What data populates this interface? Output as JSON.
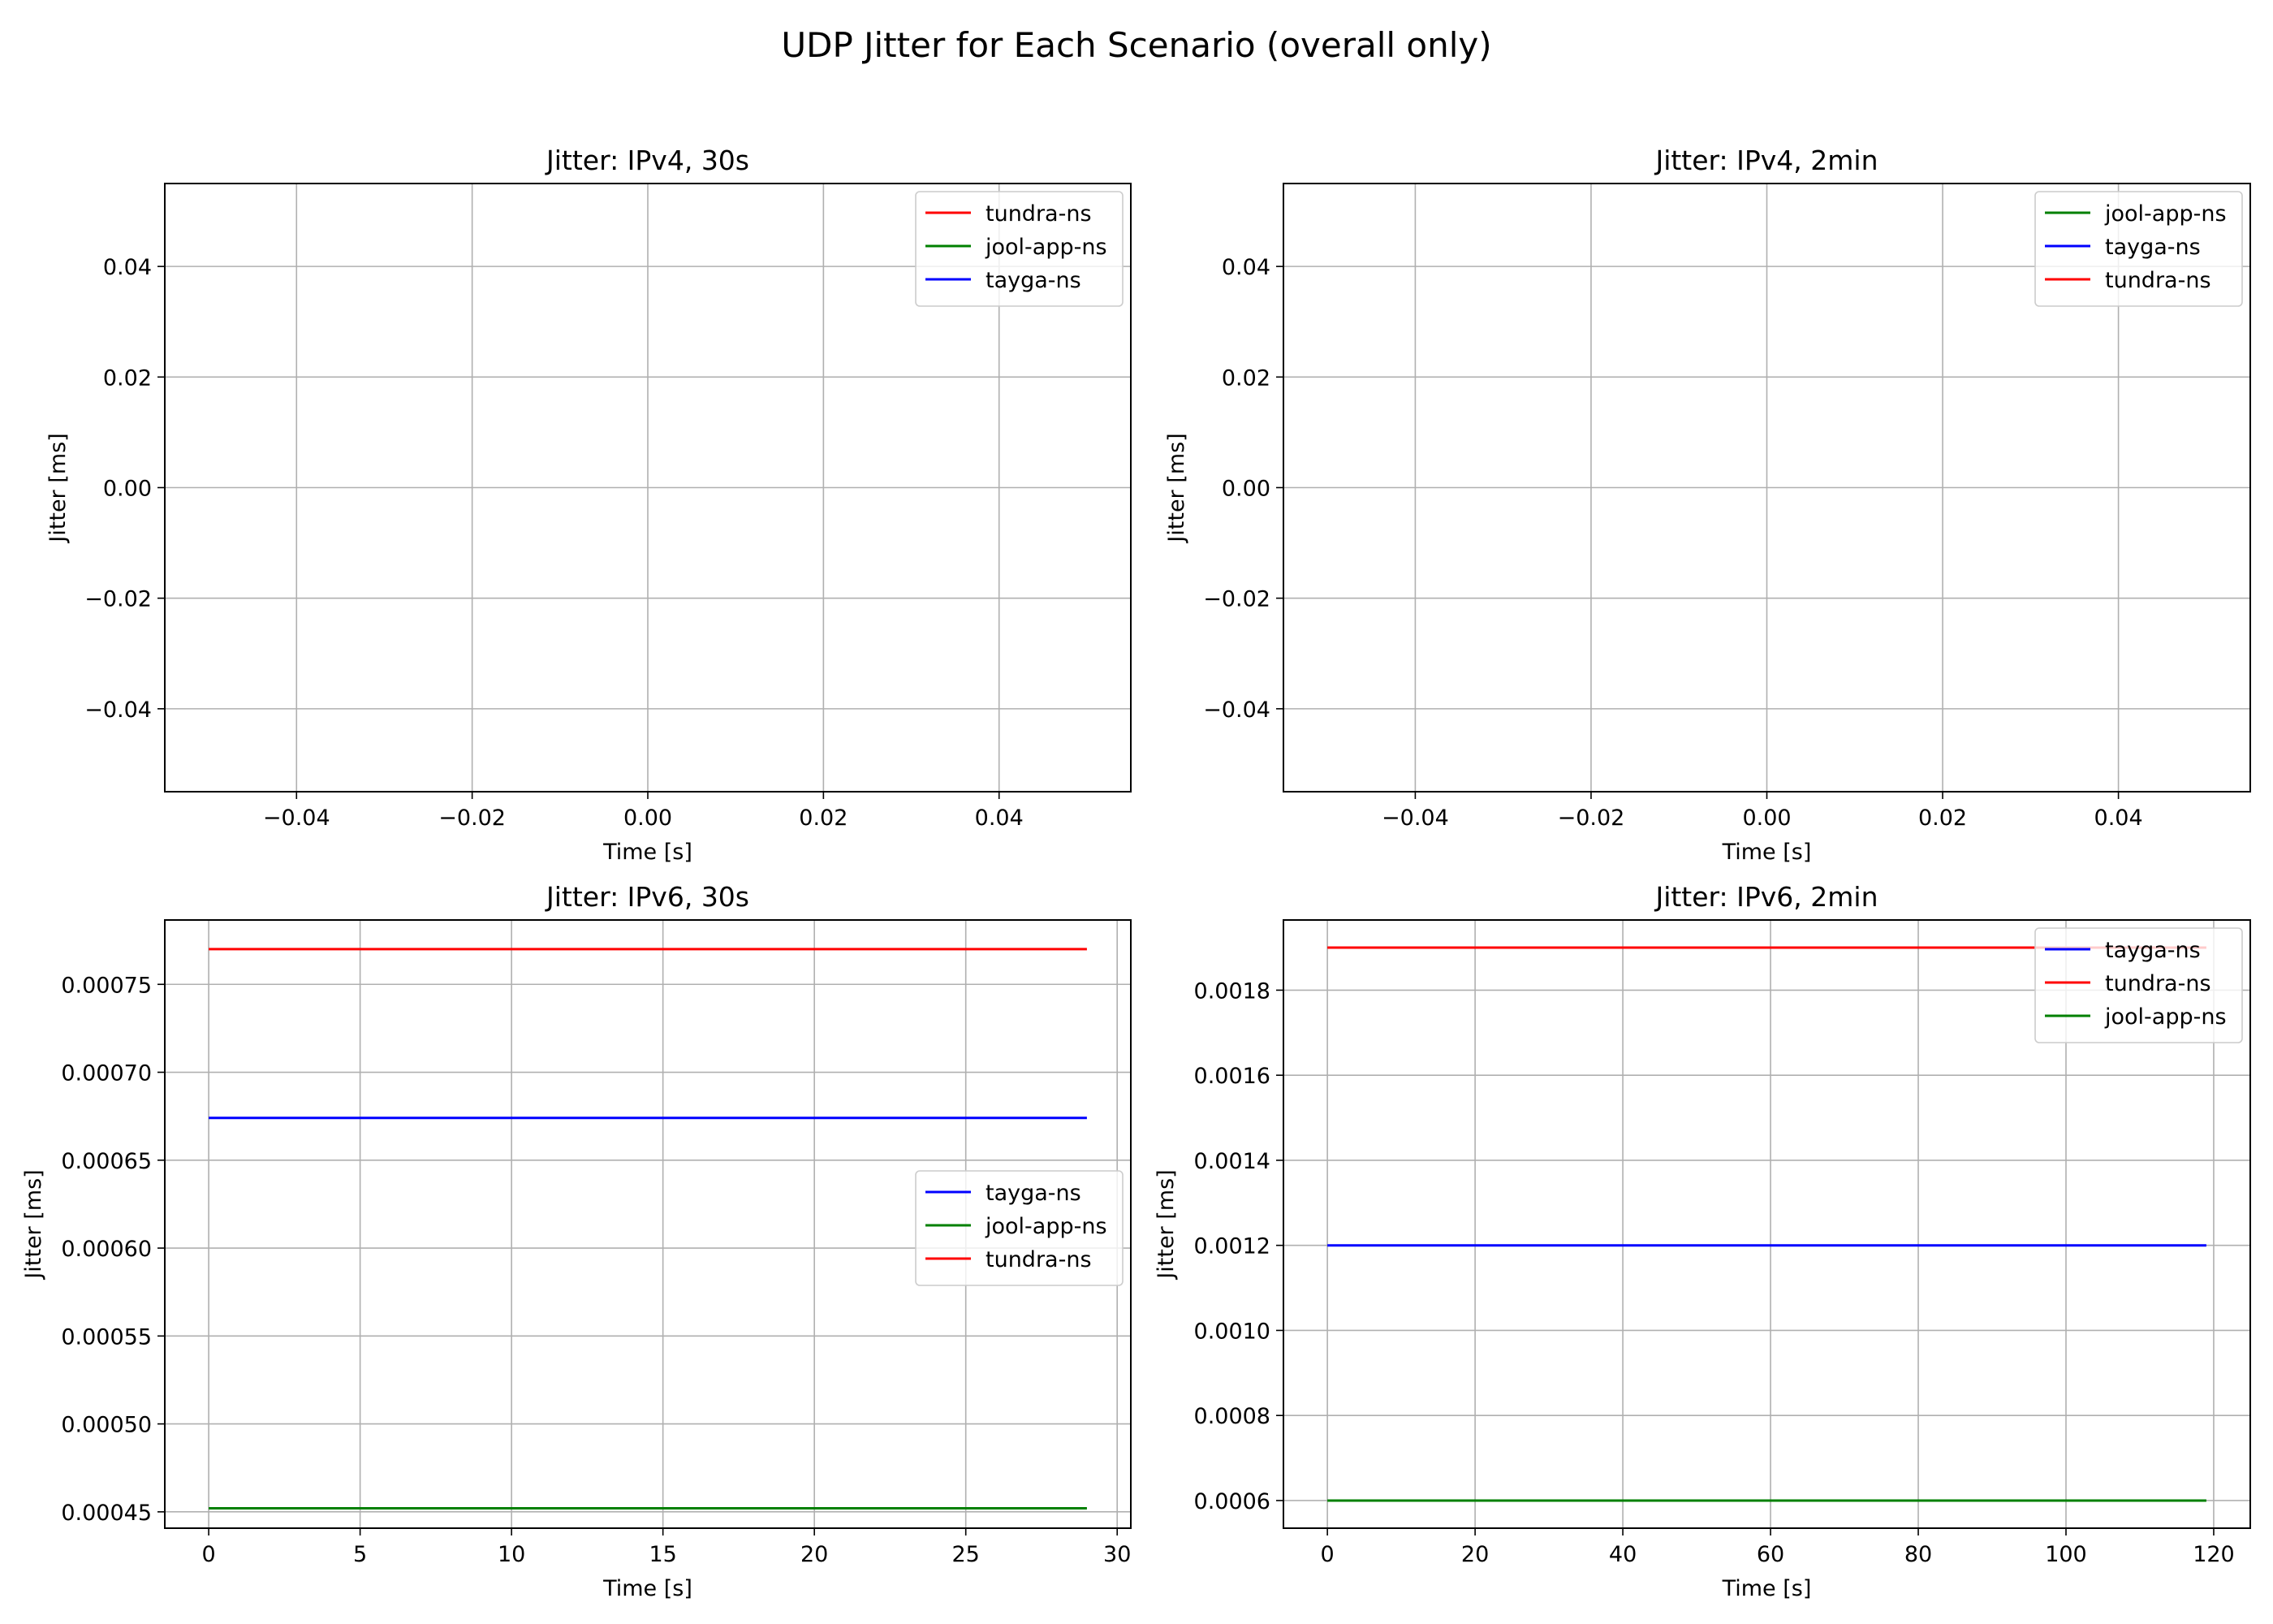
{
  "figure": {
    "title": "UDP Jitter for Each Scenario (overall only)"
  },
  "chart_data": [
    {
      "type": "line",
      "title": "Jitter: IPv4, 30s",
      "xlabel": "Time [s]",
      "ylabel": "Jitter [ms]",
      "xlim": [
        -0.055,
        0.055
      ],
      "ylim": [
        -0.055,
        0.055
      ],
      "xticks": [
        -0.04,
        -0.02,
        0.0,
        0.02,
        0.04
      ],
      "xtick_labels": [
        "−0.04",
        "−0.02",
        "0.00",
        "0.02",
        "0.04"
      ],
      "yticks": [
        -0.04,
        -0.02,
        0.0,
        0.02,
        0.04
      ],
      "ytick_labels": [
        "−0.04",
        "−0.02",
        "0.00",
        "0.02",
        "0.04"
      ],
      "grid": true,
      "legend_position": "top-right",
      "series": [
        {
          "name": "tundra-ns",
          "color": "#ff0000",
          "x": [],
          "y": []
        },
        {
          "name": "jool-app-ns",
          "color": "#008000",
          "x": [],
          "y": []
        },
        {
          "name": "tayga-ns",
          "color": "#0000ff",
          "x": [],
          "y": []
        }
      ]
    },
    {
      "type": "line",
      "title": "Jitter: IPv4, 2min",
      "xlabel": "Time [s]",
      "ylabel": "Jitter [ms]",
      "xlim": [
        -0.055,
        0.055
      ],
      "ylim": [
        -0.055,
        0.055
      ],
      "xticks": [
        -0.04,
        -0.02,
        0.0,
        0.02,
        0.04
      ],
      "xtick_labels": [
        "−0.04",
        "−0.02",
        "0.00",
        "0.02",
        "0.04"
      ],
      "yticks": [
        -0.04,
        -0.02,
        0.0,
        0.02,
        0.04
      ],
      "ytick_labels": [
        "−0.04",
        "−0.02",
        "0.00",
        "0.02",
        "0.04"
      ],
      "grid": true,
      "legend_position": "top-right",
      "series": [
        {
          "name": "jool-app-ns",
          "color": "#008000",
          "x": [],
          "y": []
        },
        {
          "name": "tayga-ns",
          "color": "#0000ff",
          "x": [],
          "y": []
        },
        {
          "name": "tundra-ns",
          "color": "#ff0000",
          "x": [],
          "y": []
        }
      ]
    },
    {
      "type": "line",
      "title": "Jitter: IPv6, 30s",
      "xlabel": "Time [s]",
      "ylabel": "Jitter [ms]",
      "xlim": [
        -1.45,
        30.45
      ],
      "ylim": [
        0.0004407,
        0.0007866
      ],
      "xticks": [
        0,
        5,
        10,
        15,
        20,
        25,
        30
      ],
      "xtick_labels": [
        "0",
        "5",
        "10",
        "15",
        "20",
        "25",
        "30"
      ],
      "yticks": [
        0.00045,
        0.0005,
        0.00055,
        0.0006,
        0.00065,
        0.0007,
        0.00075
      ],
      "ytick_labels": [
        "0.00045",
        "0.00050",
        "0.00055",
        "0.00060",
        "0.00065",
        "0.00070",
        "0.00075"
      ],
      "grid": true,
      "legend_position": "center-right",
      "series": [
        {
          "name": "tayga-ns",
          "color": "#0000ff",
          "x": [
            0,
            29
          ],
          "y": [
            0.000674,
            0.000674
          ]
        },
        {
          "name": "jool-app-ns",
          "color": "#008000",
          "x": [
            0,
            29
          ],
          "y": [
            0.000452,
            0.000452
          ]
        },
        {
          "name": "tundra-ns",
          "color": "#ff0000",
          "x": [
            0,
            29
          ],
          "y": [
            0.00077,
            0.00077
          ]
        }
      ]
    },
    {
      "type": "line",
      "title": "Jitter: IPv6, 2min",
      "xlabel": "Time [s]",
      "ylabel": "Jitter [ms]",
      "xlim": [
        -5.95,
        124.95
      ],
      "ylim": [
        0.000535,
        0.001965
      ],
      "xticks": [
        0,
        20,
        40,
        60,
        80,
        100,
        120
      ],
      "xtick_labels": [
        "0",
        "20",
        "40",
        "60",
        "80",
        "100",
        "120"
      ],
      "yticks": [
        0.0006,
        0.0008,
        0.001,
        0.0012,
        0.0014,
        0.0016,
        0.0018
      ],
      "ytick_labels": [
        "0.0006",
        "0.0008",
        "0.0010",
        "0.0012",
        "0.0014",
        "0.0016",
        "0.0018"
      ],
      "grid": true,
      "legend_position": "top-right",
      "series": [
        {
          "name": "tayga-ns",
          "color": "#0000ff",
          "x": [
            0,
            119
          ],
          "y": [
            0.0012,
            0.0012
          ]
        },
        {
          "name": "tundra-ns",
          "color": "#ff0000",
          "x": [
            0,
            119
          ],
          "y": [
            0.0019,
            0.0019
          ]
        },
        {
          "name": "jool-app-ns",
          "color": "#008000",
          "x": [
            0,
            119
          ],
          "y": [
            0.0006,
            0.0006
          ]
        }
      ]
    }
  ]
}
